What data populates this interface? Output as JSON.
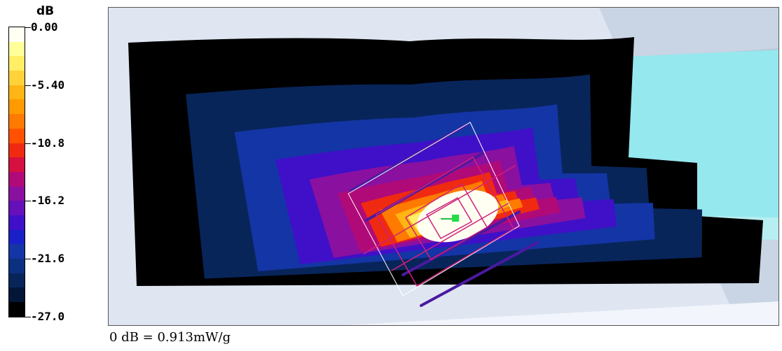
{
  "chart_data": {
    "type": "heatmap",
    "colorbar": {
      "unit": "dB",
      "range": [
        -27.0,
        0.0
      ],
      "tick_labels": [
        "0.00",
        "-5.40",
        "-10.8",
        "-16.2",
        "-21.6",
        "-27.0"
      ],
      "colors": [
        "#fffff2",
        "#ffff9a",
        "#ffee66",
        "#ffd23a",
        "#ffb514",
        "#ff9a00",
        "#ff7a00",
        "#ff5100",
        "#f02a10",
        "#d61040",
        "#b00a78",
        "#8a10a0",
        "#6510b8",
        "#3f10c8",
        "#1a20c8",
        "#1435a5",
        "#0c3080",
        "#08255a",
        "#041638",
        "#000000"
      ]
    },
    "contours_db": [
      -27.0,
      -24.3,
      -21.6,
      -18.9,
      -16.2,
      -13.5,
      -10.8,
      -8.1,
      -5.4,
      -2.7
    ],
    "reference_note": "0 dB = 0.913mW/g"
  }
}
